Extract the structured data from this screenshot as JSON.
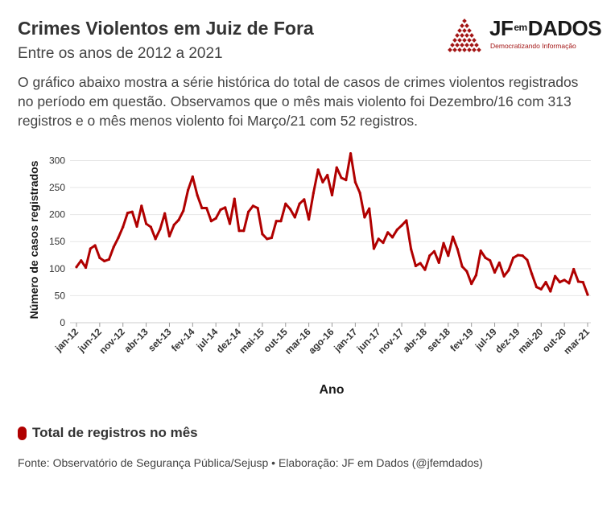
{
  "header": {
    "title": "Crimes Violentos em Juiz de Fora",
    "subtitle": "Entre os anos de 2012 a 2021",
    "description": "O gráfico abaixo mostra a série histórica do total de casos de crimes violentos registrados no período em questão. Observamos que o mês mais violento foi Dezembro/16 com 313 registros e o mês menos violento foi Março/21 com 52 registros."
  },
  "logo": {
    "name_left": "JF",
    "name_mid": "em",
    "name_right": "DADOS",
    "tagline": "Democratizando Informação",
    "color": "#a31515"
  },
  "legend": {
    "label": "Total de registros no mês",
    "color": "#b00000"
  },
  "source": "Fonte: Observatório de Segurança Pública/Sejusp • Elaboração: JF em Dados (@jfemdados)",
  "chart_data": {
    "type": "line",
    "xlabel": "Ano",
    "ylabel": "Número de casos registrados",
    "ylim": [
      0,
      320
    ],
    "yticks": [
      0,
      50,
      100,
      150,
      200,
      250,
      300
    ],
    "grid": true,
    "line_color": "#b00000",
    "x_tick_labels": [
      "jan-12",
      "jun-12",
      "nov-12",
      "abr-13",
      "set-13",
      "fev-14",
      "jul-14",
      "dez-14",
      "mai-15",
      "out-15",
      "mar-16",
      "ago-16",
      "jan-17",
      "jun-17",
      "nov-17",
      "abr-18",
      "set-18",
      "fev-19",
      "jul-19",
      "dez-19",
      "mai-20",
      "out-20",
      "mar-21"
    ],
    "series": [
      {
        "name": "Total de registros no mês",
        "start": "jan-12",
        "values": [
          103,
          115,
          102,
          137,
          143,
          120,
          114,
          117,
          140,
          157,
          177,
          203,
          205,
          178,
          216,
          183,
          177,
          155,
          173,
          202,
          160,
          181,
          190,
          207,
          245,
          270,
          236,
          212,
          212,
          188,
          193,
          209,
          213,
          183,
          229,
          170,
          170,
          205,
          216,
          212,
          164,
          155,
          157,
          188,
          188,
          220,
          210,
          195,
          220,
          228,
          191,
          240,
          283,
          260,
          273,
          236,
          287,
          268,
          264,
          313,
          260,
          240,
          195,
          211,
          137,
          155,
          148,
          167,
          158,
          172,
          180,
          189,
          136,
          105,
          110,
          98,
          124,
          132,
          111,
          147,
          124,
          159,
          136,
          104,
          95,
          72,
          88,
          133,
          120,
          115,
          93,
          111,
          86,
          97,
          120,
          125,
          124,
          116,
          90,
          66,
          62,
          75,
          58,
          86,
          75,
          79,
          73,
          99,
          76,
          75,
          52
        ]
      }
    ]
  }
}
